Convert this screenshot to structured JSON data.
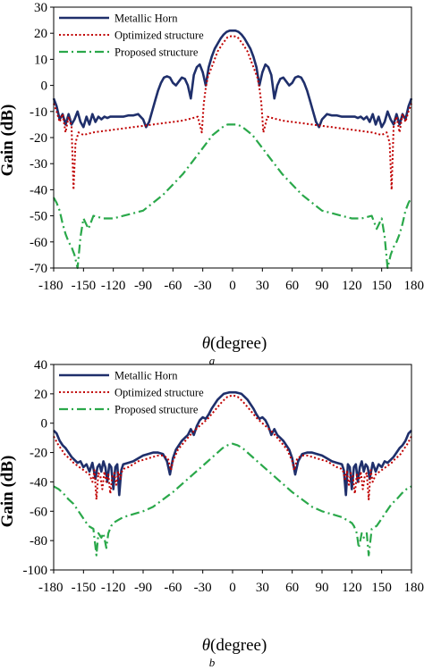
{
  "chart_data": [
    {
      "type": "line",
      "caption": "a",
      "xlabel_symbol": "θ",
      "xlabel": "(degree)",
      "ylabel": "Gain (dB)",
      "xlim": [
        -180,
        180
      ],
      "ylim": [
        -70,
        30
      ],
      "xticks": [
        -180,
        -150,
        -120,
        -90,
        -60,
        -30,
        0,
        30,
        60,
        90,
        120,
        150,
        180
      ],
      "yticks": [
        -70,
        -60,
        -50,
        -40,
        -30,
        -20,
        -10,
        0,
        10,
        20,
        30
      ],
      "grid": false,
      "legend_position": "top-left",
      "series": [
        {
          "name": "Metallic Horn",
          "color": "#1f2f6b",
          "style": "solid",
          "x": [
            -180,
            -177,
            -174,
            -171,
            -168,
            -165,
            -162,
            -159,
            -156,
            -153,
            -150,
            -147,
            -144,
            -141,
            -138,
            -135,
            -132,
            -129,
            -126,
            -123,
            -120,
            -115,
            -110,
            -105,
            -100,
            -95,
            -90,
            -87,
            -84,
            -81,
            -78,
            -75,
            -72,
            -69,
            -66,
            -63,
            -60,
            -57,
            -54,
            -51,
            -48,
            -45,
            -42,
            -39,
            -36,
            -33,
            -30,
            -27,
            -24,
            -21,
            -18,
            -15,
            -12,
            -9,
            -6,
            -3,
            0,
            3,
            6,
            9,
            12,
            15,
            18,
            21,
            24,
            27,
            30,
            33,
            36,
            39,
            42,
            45,
            48,
            51,
            54,
            57,
            60,
            63,
            66,
            69,
            72,
            75,
            78,
            81,
            84,
            87,
            90,
            95,
            100,
            105,
            110,
            115,
            120,
            123,
            126,
            129,
            132,
            135,
            138,
            141,
            144,
            147,
            150,
            153,
            156,
            159,
            162,
            165,
            168,
            171,
            174,
            177,
            180
          ],
          "y": [
            -5,
            -8,
            -13,
            -11,
            -15,
            -11,
            -15,
            -13,
            -10,
            -14,
            -16,
            -12,
            -15,
            -11,
            -14,
            -12,
            -13,
            -12,
            -12.5,
            -12,
            -12,
            -12,
            -12,
            -11.5,
            -11.5,
            -11,
            -13,
            -16,
            -14,
            -10,
            -6,
            -2,
            1,
            3,
            3.5,
            3,
            1,
            0,
            1.5,
            3,
            2.5,
            0,
            -5,
            4,
            7,
            8,
            5,
            0,
            7,
            11,
            14,
            16,
            18,
            19.5,
            20.5,
            21,
            21,
            21,
            20.5,
            19.5,
            18,
            16,
            14,
            11,
            7,
            0,
            5,
            8,
            7,
            4,
            -5,
            0,
            2.5,
            3,
            1.5,
            0,
            1,
            3,
            3.5,
            3,
            1,
            -2,
            -6,
            -10,
            -14,
            -16,
            -13,
            -11,
            -11.5,
            -11.5,
            -12,
            -12,
            -12,
            -12,
            -12.5,
            -12,
            -13,
            -12,
            -14,
            -11,
            -15,
            -12,
            -16,
            -14,
            -10,
            -13,
            -15,
            -11,
            -15,
            -11,
            -13,
            -8,
            -5
          ]
        },
        {
          "name": "Optimized structure",
          "color": "#c00000",
          "style": "dotted",
          "x": [
            -180,
            -177,
            -174,
            -171,
            -168,
            -165,
            -162,
            -160,
            -158,
            -155,
            -150,
            -140,
            -130,
            -120,
            -110,
            -100,
            -90,
            -80,
            -70,
            -60,
            -50,
            -45,
            -40,
            -35,
            -33,
            -31,
            -29,
            -27,
            -25,
            -20,
            -15,
            -10,
            -5,
            0,
            5,
            10,
            15,
            20,
            25,
            27,
            29,
            31,
            33,
            35,
            40,
            45,
            50,
            60,
            70,
            80,
            90,
            100,
            110,
            120,
            130,
            140,
            150,
            155,
            158,
            160,
            162,
            165,
            168,
            171,
            174,
            177,
            180
          ],
          "y": [
            -7,
            -10,
            -14,
            -11,
            -18,
            -12,
            -16,
            -40,
            -22,
            -18,
            -19,
            -18,
            -17.5,
            -17,
            -16.5,
            -16,
            -15.5,
            -15,
            -14.5,
            -14,
            -13.5,
            -13,
            -12.5,
            -12,
            -15,
            -18,
            -7,
            -1,
            3,
            8,
            13,
            16,
            18.5,
            19,
            18.5,
            16,
            13,
            8,
            3,
            -1,
            -7,
            -18,
            -15,
            -12,
            -12.5,
            -13,
            -13.5,
            -14,
            -14.5,
            -15,
            -15.5,
            -16,
            -16.5,
            -17,
            -17.5,
            -18,
            -19,
            -18,
            -22,
            -40,
            -16,
            -12,
            -18,
            -11,
            -14,
            -10,
            -7
          ]
        },
        {
          "name": "Proposed structure",
          "color": "#2aa84a",
          "style": "dashdot",
          "x": [
            -180,
            -177,
            -174,
            -171,
            -168,
            -165,
            -162,
            -159,
            -156,
            -153,
            -150,
            -145,
            -140,
            -130,
            -120,
            -110,
            -100,
            -90,
            -80,
            -70,
            -60,
            -50,
            -40,
            -30,
            -20,
            -10,
            -5,
            0,
            5,
            10,
            20,
            30,
            40,
            50,
            60,
            70,
            80,
            90,
            100,
            110,
            120,
            130,
            140,
            145,
            150,
            153,
            156,
            159,
            162,
            165,
            168,
            171,
            174,
            177,
            180
          ],
          "y": [
            -43,
            -45,
            -48,
            -53,
            -57,
            -60,
            -62,
            -65,
            -70,
            -58,
            -51,
            -55,
            -50,
            -51,
            -51,
            -50,
            -49,
            -48,
            -45,
            -42,
            -38,
            -34,
            -29,
            -24,
            -19,
            -16,
            -15,
            -15,
            -15,
            -16,
            -19,
            -24,
            -29,
            -34,
            -38,
            -42,
            -45,
            -48,
            -49,
            -50,
            -51,
            -51,
            -50,
            -55,
            -51,
            -58,
            -70,
            -65,
            -62,
            -60,
            -57,
            -53,
            -48,
            -45,
            -43
          ]
        }
      ]
    },
    {
      "type": "line",
      "caption": "b",
      "xlabel_symbol": "θ",
      "xlabel": "(degree)",
      "ylabel": "Gain (dB)",
      "xlim": [
        -180,
        180
      ],
      "ylim": [
        -100,
        40
      ],
      "xticks": [
        -180,
        -150,
        -120,
        -90,
        -60,
        -30,
        0,
        30,
        60,
        90,
        120,
        150,
        180
      ],
      "yticks": [
        -100,
        -80,
        -60,
        -40,
        -20,
        0,
        20,
        40
      ],
      "grid": false,
      "legend_position": "top-left",
      "series": [
        {
          "name": "Metallic Horn",
          "color": "#1f2f6b",
          "style": "solid",
          "x": [
            -180,
            -177,
            -174,
            -171,
            -168,
            -165,
            -162,
            -159,
            -156,
            -153,
            -150,
            -147,
            -144,
            -141,
            -138,
            -136,
            -134,
            -132,
            -130,
            -128,
            -126,
            -124,
            -122,
            -120,
            -118,
            -116,
            -114,
            -112,
            -110,
            -105,
            -100,
            -95,
            -90,
            -85,
            -80,
            -75,
            -70,
            -66,
            -63,
            -60,
            -57,
            -54,
            -51,
            -48,
            -45,
            -42,
            -39,
            -36,
            -33,
            -30,
            -27,
            -24,
            -21,
            -18,
            -15,
            -12,
            -9,
            -6,
            -3,
            0,
            3,
            6,
            9,
            12,
            15,
            18,
            21,
            24,
            27,
            30,
            33,
            36,
            39,
            42,
            45,
            48,
            51,
            54,
            57,
            60,
            63,
            66,
            70,
            75,
            80,
            85,
            90,
            95,
            100,
            105,
            110,
            112,
            114,
            116,
            118,
            120,
            122,
            124,
            126,
            128,
            130,
            132,
            134,
            136,
            138,
            141,
            144,
            147,
            150,
            153,
            156,
            159,
            162,
            165,
            168,
            171,
            174,
            177,
            180
          ],
          "y": [
            -5,
            -7,
            -12,
            -15,
            -17,
            -20,
            -23,
            -25,
            -27,
            -26,
            -30,
            -28,
            -33,
            -27,
            -38,
            -30,
            -28,
            -33,
            -26,
            -30,
            -40,
            -28,
            -30,
            -45,
            -30,
            -28,
            -49,
            -32,
            -28,
            -27,
            -26,
            -24,
            -22,
            -21,
            -20,
            -20,
            -21,
            -26,
            -35,
            -24,
            -18,
            -15,
            -12,
            -10,
            -8,
            -4,
            -8,
            -2,
            2,
            4,
            3,
            6,
            10,
            13,
            16,
            18,
            20,
            20.5,
            21,
            21,
            21,
            20.5,
            20,
            18,
            16,
            13,
            10,
            6,
            3,
            4,
            2,
            -2,
            -8,
            -4,
            -8,
            -10,
            -12,
            -15,
            -18,
            -24,
            -35,
            -26,
            -21,
            -20,
            -20,
            -21,
            -22,
            -24,
            -26,
            -27,
            -28,
            -32,
            -49,
            -28,
            -30,
            -45,
            -30,
            -28,
            -40,
            -30,
            -26,
            -33,
            -28,
            -30,
            -38,
            -27,
            -33,
            -28,
            -30,
            -26,
            -27,
            -25,
            -23,
            -20,
            -17,
            -15,
            -12,
            -7,
            -5
          ]
        },
        {
          "name": "Optimized structure",
          "color": "#c00000",
          "style": "dotted",
          "x": [
            -180,
            -176,
            -172,
            -168,
            -164,
            -160,
            -156,
            -152,
            -148,
            -144,
            -141,
            -139,
            -137,
            -135,
            -133,
            -131,
            -129,
            -127,
            -125,
            -123,
            -121,
            -119,
            -117,
            -115,
            -113,
            -111,
            -109,
            -105,
            -100,
            -95,
            -90,
            -85,
            -80,
            -75,
            -70,
            -65,
            -62,
            -60,
            -55,
            -50,
            -45,
            -40,
            -35,
            -30,
            -25,
            -20,
            -15,
            -10,
            -5,
            0,
            5,
            10,
            15,
            20,
            25,
            30,
            35,
            40,
            45,
            50,
            55,
            60,
            62,
            65,
            70,
            75,
            80,
            85,
            90,
            95,
            100,
            105,
            109,
            111,
            113,
            115,
            117,
            119,
            121,
            123,
            125,
            127,
            129,
            131,
            133,
            135,
            137,
            139,
            141,
            144,
            148,
            152,
            156,
            160,
            164,
            168,
            172,
            176,
            180
          ],
          "y": [
            -9,
            -14,
            -18,
            -22,
            -24,
            -27,
            -29,
            -31,
            -33,
            -35,
            -40,
            -32,
            -52,
            -34,
            -36,
            -45,
            -33,
            -40,
            -35,
            -48,
            -36,
            -34,
            -42,
            -33,
            -38,
            -32,
            -31,
            -30,
            -28,
            -26,
            -25,
            -24,
            -23,
            -22,
            -22,
            -24,
            -32,
            -26,
            -18,
            -14,
            -10,
            -6,
            -3,
            0,
            3,
            7,
            11,
            15,
            18,
            19,
            18,
            15,
            11,
            7,
            3,
            0,
            -3,
            -6,
            -10,
            -14,
            -18,
            -26,
            -32,
            -24,
            -22,
            -22,
            -23,
            -24,
            -25,
            -26,
            -28,
            -30,
            -31,
            -32,
            -38,
            -33,
            -42,
            -34,
            -36,
            -48,
            -35,
            -40,
            -33,
            -45,
            -36,
            -34,
            -52,
            -32,
            -40,
            -35,
            -33,
            -31,
            -29,
            -27,
            -24,
            -22,
            -18,
            -14,
            -9
          ]
        },
        {
          "name": "Proposed structure",
          "color": "#2aa84a",
          "style": "dashdot",
          "x": [
            -180,
            -175,
            -170,
            -165,
            -160,
            -155,
            -150,
            -145,
            -140,
            -137,
            -135,
            -132,
            -130,
            -127,
            -125,
            -122,
            -120,
            -115,
            -110,
            -100,
            -90,
            -80,
            -70,
            -60,
            -50,
            -40,
            -30,
            -20,
            -10,
            -5,
            0,
            5,
            10,
            20,
            30,
            40,
            50,
            60,
            70,
            80,
            90,
            100,
            110,
            115,
            120,
            122,
            125,
            127,
            130,
            132,
            135,
            137,
            140,
            145,
            150,
            155,
            160,
            165,
            170,
            175,
            180
          ],
          "y": [
            -43,
            -45,
            -48,
            -52,
            -55,
            -60,
            -65,
            -70,
            -72,
            -90,
            -75,
            -78,
            -75,
            -85,
            -75,
            -70,
            -68,
            -66,
            -64,
            -62,
            -60,
            -57,
            -52,
            -47,
            -41,
            -35,
            -29,
            -23,
            -17,
            -15,
            -14,
            -15,
            -17,
            -23,
            -29,
            -35,
            -41,
            -47,
            -52,
            -57,
            -60,
            -62,
            -64,
            -66,
            -68,
            -70,
            -75,
            -85,
            -75,
            -78,
            -75,
            -90,
            -72,
            -70,
            -65,
            -60,
            -55,
            -52,
            -48,
            -45,
            -43
          ]
        }
      ]
    }
  ]
}
